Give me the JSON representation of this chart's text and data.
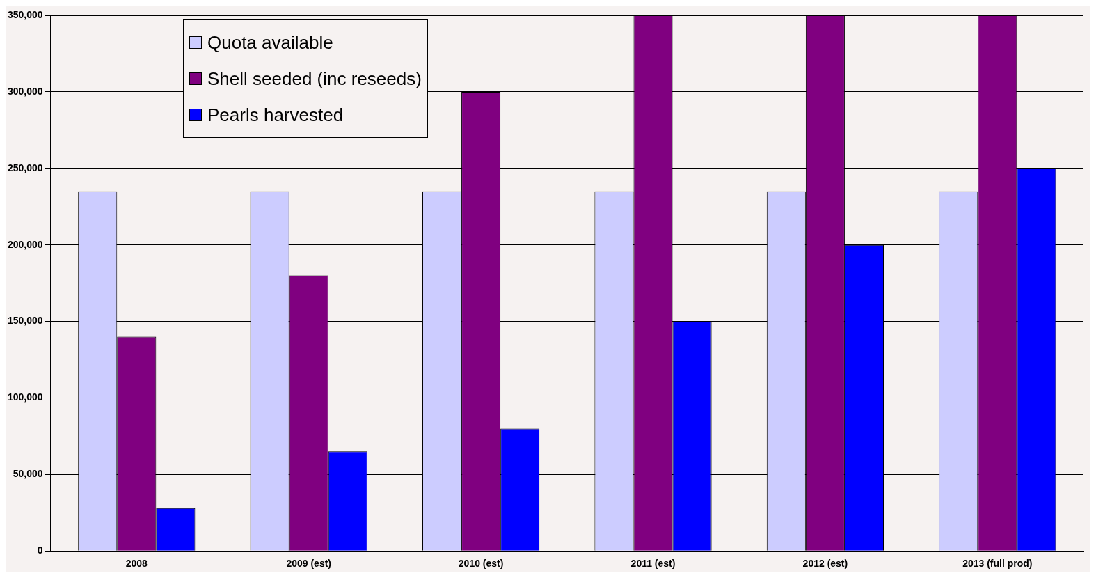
{
  "chart_data": {
    "type": "bar",
    "categories": [
      "2008",
      "2009 (est)",
      "2010 (est)",
      "2011 (est)",
      "2012 (est)",
      "2013 (full prod)"
    ],
    "series": [
      {
        "name": "Quota available",
        "color": "#ccccff",
        "values": [
          235000,
          235000,
          235000,
          235000,
          235000,
          235000
        ]
      },
      {
        "name": "Shell seeded (inc reseeds)",
        "color": "#800080",
        "values": [
          140000,
          180000,
          300000,
          350000,
          350000,
          350000
        ]
      },
      {
        "name": "Pearls harvested",
        "color": "#0000ff",
        "values": [
          28000,
          65000,
          80000,
          150000,
          200000,
          250000
        ]
      }
    ],
    "ylim": [
      0,
      350000
    ],
    "yticks": [
      {
        "value": 0,
        "label": "0"
      },
      {
        "value": 50000,
        "label": "50,000"
      },
      {
        "value": 100000,
        "label": "100,000"
      },
      {
        "value": 150000,
        "label": "150,000"
      },
      {
        "value": 200000,
        "label": "200,000"
      },
      {
        "value": 250000,
        "label": "250,000"
      },
      {
        "value": 300000,
        "label": "300,000"
      },
      {
        "value": 350000,
        "label": "350,000"
      }
    ],
    "grid": "y",
    "legend": "top left"
  }
}
